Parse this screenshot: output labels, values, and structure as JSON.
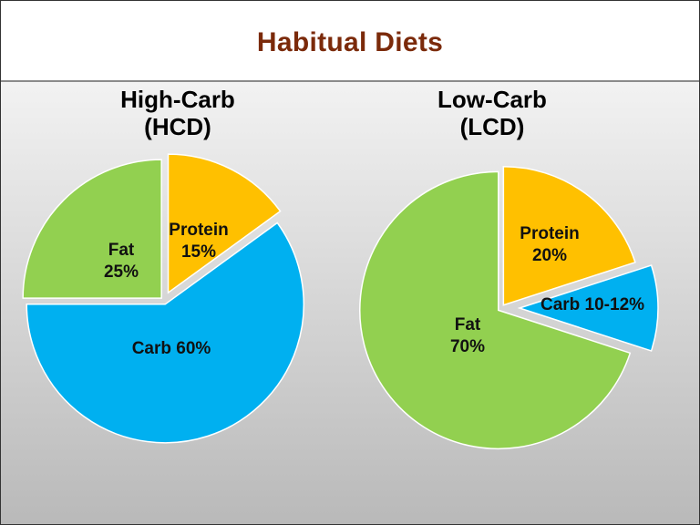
{
  "header": {
    "title": "Habitual Diets"
  },
  "chart_data": [
    {
      "type": "pie",
      "title_line1": "High-Carb",
      "title_line2": "(HCD)",
      "slices": [
        {
          "label_line1": "Protein",
          "label_line2": "15%",
          "value": 15,
          "color": "#ffc000"
        },
        {
          "label_line1": "Carb 60%",
          "label_line2": "",
          "value": 60,
          "color": "#00b0f0"
        },
        {
          "label_line1": "Fat",
          "label_line2": "25%",
          "value": 25,
          "color": "#92d050"
        }
      ]
    },
    {
      "type": "pie",
      "title_line1": "Low-Carb",
      "title_line2": "(LCD)",
      "slices": [
        {
          "label_line1": "Protein",
          "label_line2": "20%",
          "value": 20,
          "color": "#ffc000"
        },
        {
          "label_line1": "Carb 10-12%",
          "label_line2": "",
          "value": 10,
          "color": "#00b0f0"
        },
        {
          "label_line1": "Fat",
          "label_line2": "70%",
          "value": 70,
          "color": "#92d050"
        }
      ]
    }
  ]
}
